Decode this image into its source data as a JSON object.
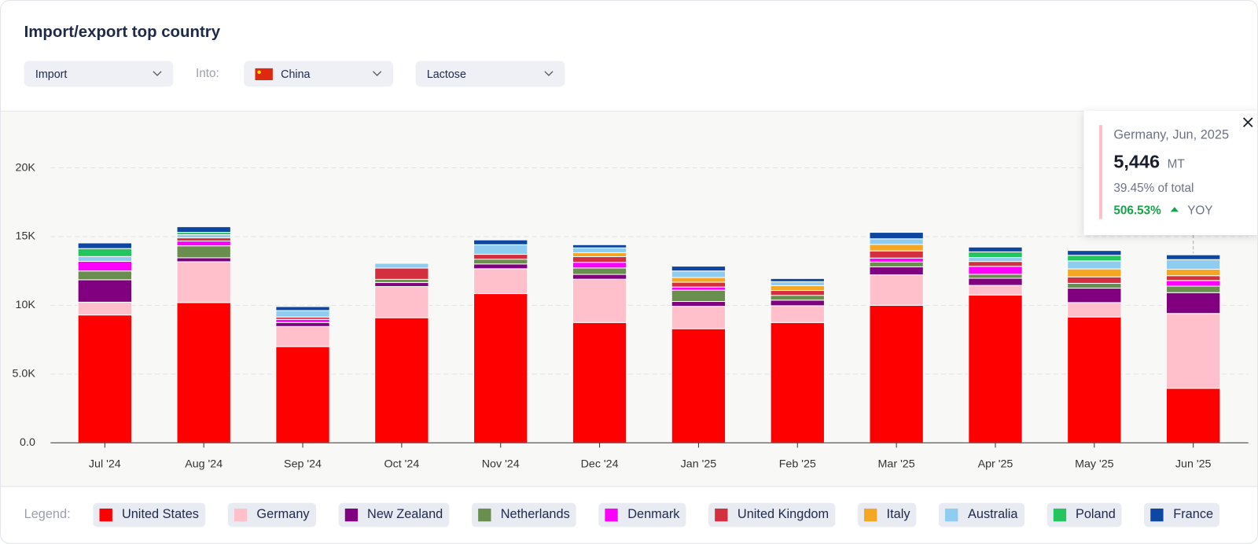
{
  "header": {
    "title": "Import/export top country",
    "flow": "Import",
    "into_label": "Into:",
    "country": "China",
    "product": "Lactose"
  },
  "chart_data": {
    "type": "stacked-bar",
    "categories": [
      "Jul '24",
      "Aug '24",
      "Sep '24",
      "Oct '24",
      "Nov '24",
      "Dec '24",
      "Jan '25",
      "Feb '25",
      "Mar '25",
      "Apr '25",
      "May '25",
      "Jun '25"
    ],
    "series": [
      {
        "name": "United States",
        "color": "#ff0000",
        "values": [
          9300,
          10200,
          7000,
          9100,
          10850,
          8750,
          8300,
          8750,
          10000,
          10750,
          9150,
          3960
        ]
      },
      {
        "name": "Germany",
        "color": "#ffc0cb",
        "values": [
          930,
          2970,
          1460,
          2270,
          1810,
          3150,
          1630,
          1220,
          2220,
          700,
          1050,
          5446
        ]
      },
      {
        "name": "New Zealand",
        "color": "#800080",
        "values": [
          1630,
          290,
          290,
          290,
          350,
          350,
          350,
          410,
          580,
          520,
          1050,
          1520
        ]
      },
      {
        "name": "Netherlands",
        "color": "#6a8e4e",
        "values": [
          640,
          870,
          0,
          230,
          350,
          470,
          820,
          350,
          350,
          290,
          350,
          470
        ]
      },
      {
        "name": "Denmark",
        "color": "#ff00ff",
        "values": [
          700,
          350,
          230,
          0,
          0,
          410,
          230,
          0,
          290,
          580,
          0,
          410
        ]
      },
      {
        "name": "United Kingdom",
        "color": "#d32f3f",
        "values": [
          0,
          230,
          170,
          820,
          350,
          410,
          350,
          350,
          520,
          350,
          470,
          350
        ]
      },
      {
        "name": "Italy",
        "color": "#f5a623",
        "values": [
          0,
          0,
          0,
          0,
          0,
          290,
          350,
          350,
          470,
          0,
          580,
          470
        ]
      },
      {
        "name": "Australia",
        "color": "#8ecdf0",
        "values": [
          350,
          230,
          470,
          350,
          700,
          350,
          470,
          290,
          410,
          290,
          580,
          700
        ]
      },
      {
        "name": "Poland",
        "color": "#22c55e",
        "values": [
          580,
          170,
          0,
          0,
          0,
          0,
          0,
          0,
          0,
          410,
          410,
          0
        ]
      },
      {
        "name": "France",
        "color": "#0d47a1",
        "values": [
          410,
          410,
          290,
          0,
          350,
          230,
          350,
          230,
          470,
          350,
          350,
          350
        ]
      }
    ],
    "ylim": [
      0,
      22000
    ],
    "yticks": [
      {
        "value": 0,
        "label": "0.0"
      },
      {
        "value": 5000,
        "label": "5.0K"
      },
      {
        "value": 10000,
        "label": "10K"
      },
      {
        "value": 15000,
        "label": "15K"
      },
      {
        "value": 20000,
        "label": "20K"
      }
    ],
    "grid": true,
    "legend_label": "Legend:"
  },
  "tooltip": {
    "title": "Germany, Jun, 2025",
    "value": "5,446",
    "unit": "MT",
    "share": "39.45% of total",
    "change": "506.53%",
    "change_label": "YOY"
  }
}
